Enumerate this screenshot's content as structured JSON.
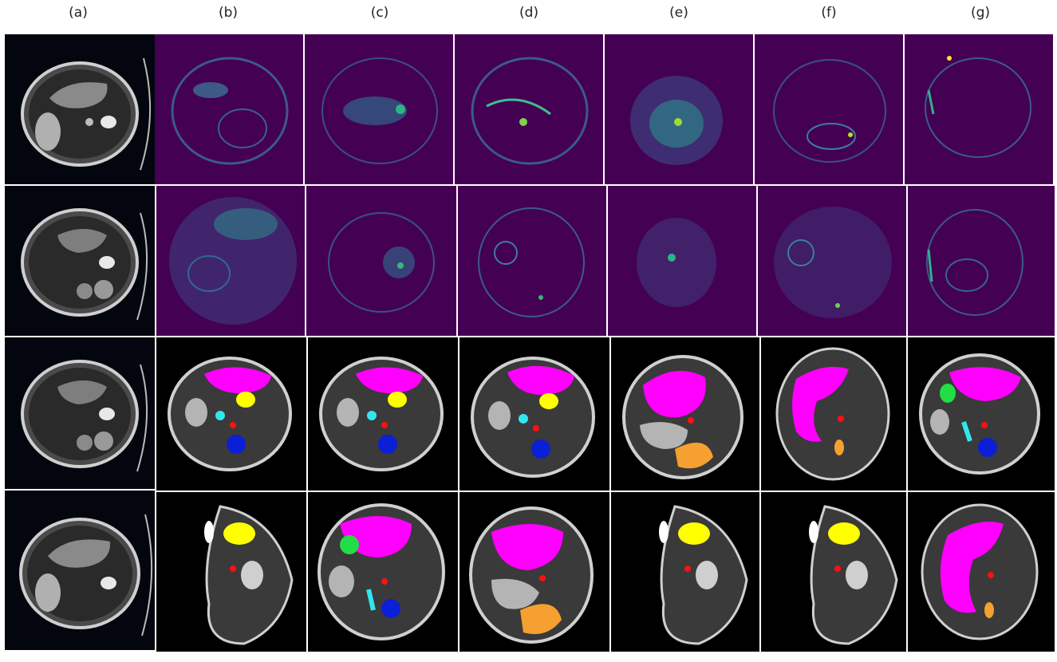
{
  "figure": {
    "column_labels": [
      "(a)",
      "(b)",
      "(c)",
      "(d)",
      "(e)",
      "(f)",
      "(g)"
    ]
  },
  "rows": [
    {
      "row": 1,
      "content": "attention-map",
      "colormap": "viridis"
    },
    {
      "row": 2,
      "content": "attention-map",
      "colormap": "viridis"
    },
    {
      "row": 3,
      "content": "segmentation-overlay"
    },
    {
      "row": 4,
      "content": "segmentation-overlay"
    }
  ],
  "colors": {
    "map_background": "#440154",
    "label_magenta": "#ff00ff",
    "label_yellow": "#ffff00",
    "label_cyan": "#33e6ee",
    "label_red": "#ff1010",
    "label_blue": "#0a1fd6",
    "label_gray": "#b4b4b4",
    "label_green": "#22dd44",
    "label_orange": "#f5a030"
  }
}
